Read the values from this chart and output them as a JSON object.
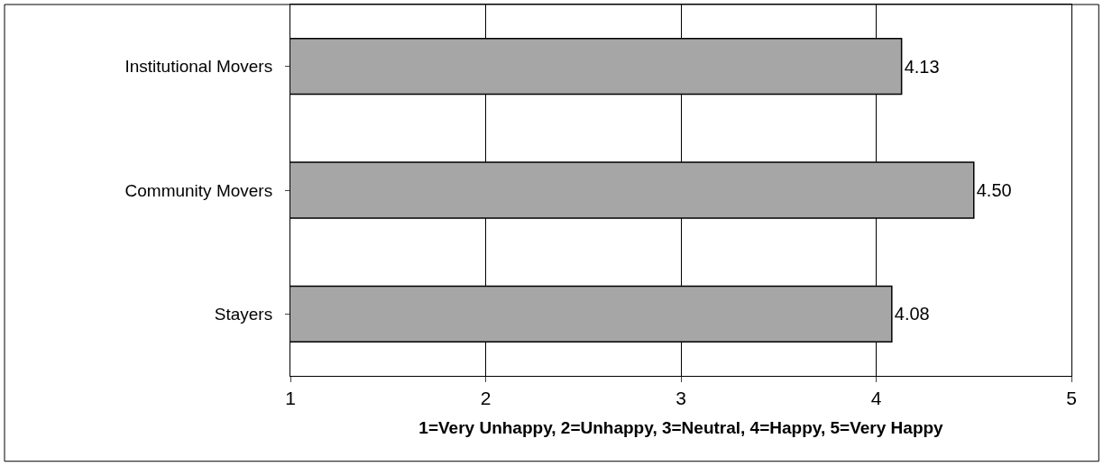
{
  "chart_data": {
    "type": "bar",
    "orientation": "horizontal",
    "categories": [
      "Institutional Movers",
      "Community Movers",
      "Stayers"
    ],
    "values": [
      4.13,
      4.5,
      4.08
    ],
    "color": "#a6a6a6",
    "xlim": [
      1,
      5
    ],
    "xticks": [
      1,
      2,
      3,
      4,
      5
    ],
    "grid": "x",
    "value_labels": [
      "4.13",
      "4.50",
      "4.08"
    ],
    "xlabel": "1=Very Unhappy, 2=Unhappy, 3=Neutral, 4=Happy, 5=Very Happy",
    "legend": false
  }
}
